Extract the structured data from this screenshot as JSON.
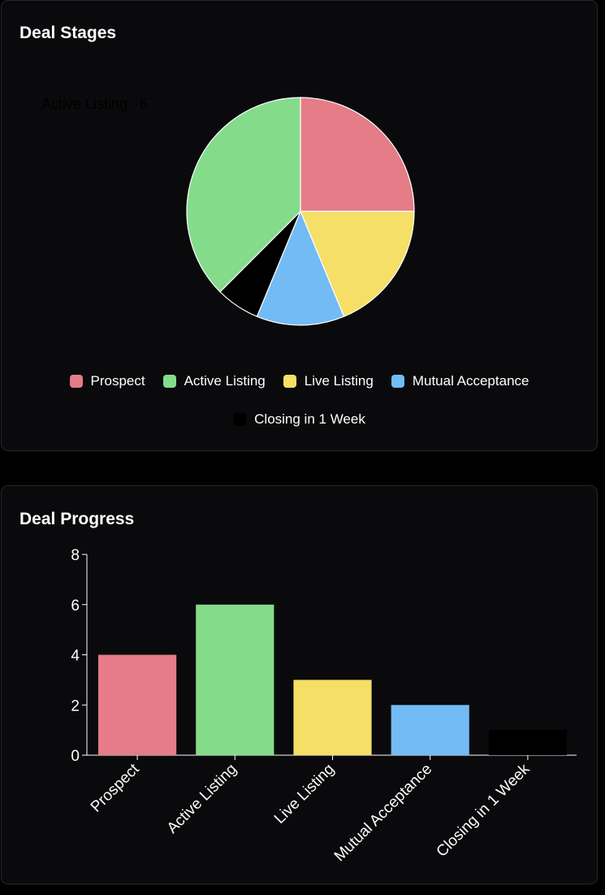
{
  "colors": {
    "prospect": "#e57c87",
    "active_listing": "#84dc8b",
    "live_listing": "#f5df66",
    "mutual_acceptance": "#72bbf5",
    "closing": "#000000",
    "card_bg": "#0a0a0c",
    "border": "#27272a"
  },
  "stages_card": {
    "title": "Deal Stages",
    "tooltip": "Active Listing : 6"
  },
  "progress_card": {
    "title": "Deal Progress"
  },
  "chart_data": [
    {
      "type": "pie",
      "title": "Deal Stages",
      "categories": [
        "Prospect",
        "Live Listing",
        "Mutual Acceptance",
        "Closing in 1 Week",
        "Active Listing"
      ],
      "values": [
        4,
        3,
        2,
        1,
        6
      ],
      "legend": [
        "Prospect",
        "Active Listing",
        "Live Listing",
        "Mutual Acceptance",
        "Closing in 1 Week"
      ],
      "legend_placement": "bottom"
    },
    {
      "type": "bar",
      "title": "Deal Progress",
      "categories": [
        "Prospect",
        "Active Listing",
        "Live Listing",
        "Mutual Acceptance",
        "Closing in 1 Week"
      ],
      "values": [
        4,
        6,
        3,
        2,
        1
      ],
      "yticks": [
        0,
        2,
        4,
        6,
        8
      ],
      "ylim": [
        0,
        8
      ],
      "xlabel": "",
      "ylabel": "",
      "grid": false
    }
  ]
}
